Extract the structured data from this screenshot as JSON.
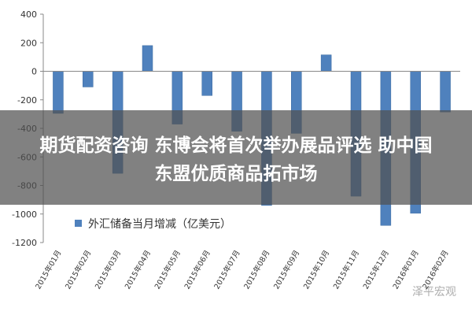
{
  "banner": {
    "line1": "期货配资咨询 东博会将首次举办展品评选 助中国",
    "line2": "东盟优质商品拓市场"
  },
  "watermark": "泽平宏观",
  "colors": {
    "bar": "#4f81bd",
    "axis": "#888888",
    "grid": "#d0d0d0"
  },
  "chart_data": {
    "type": "bar",
    "categories": [
      "2015年01月",
      "2015年02月",
      "2015年03月",
      "2015年04月",
      "2015年05月",
      "2015年06月",
      "2015年07月",
      "2015年08月",
      "2015年09月",
      "2015年10月",
      "2015年11月",
      "2015年12月",
      "2016年01月",
      "2016年02月"
    ],
    "series": [
      {
        "name": "外汇储备当月增减（亿美元）",
        "values": [
          -295,
          -110,
          -715,
          180,
          -370,
          -170,
          -420,
          -940,
          -435,
          115,
          -875,
          -1080,
          -995,
          -285
        ]
      }
    ],
    "ylim": [
      -1200,
      400
    ],
    "yticks": [
      400,
      200,
      0,
      -200,
      -400,
      -600,
      -800,
      -1000,
      -1200
    ],
    "legend": "bottom-left"
  }
}
